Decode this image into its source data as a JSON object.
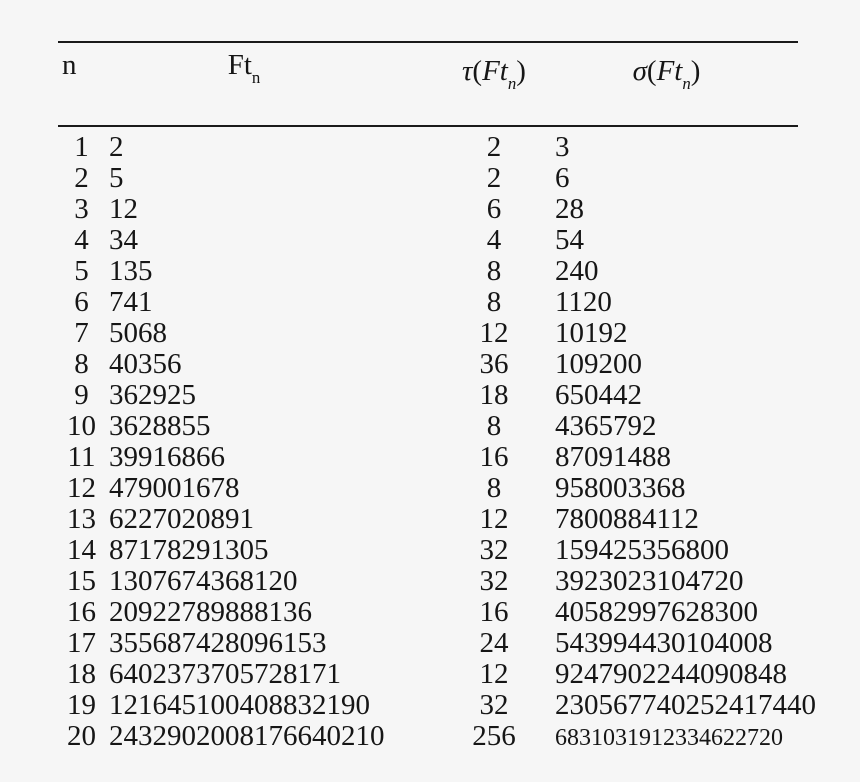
{
  "page": {
    "background_color": "#f6f6f6",
    "text_color": "#161616",
    "rule_color": "#1a1a1a"
  },
  "table": {
    "headers": {
      "n": "n",
      "ft": {
        "main": "Ft",
        "sub": "n"
      },
      "tau": {
        "func": "τ",
        "open": "(",
        "arg": "Ft",
        "sub": "n",
        "close": ")"
      },
      "sigma": {
        "func": "σ",
        "open": "(",
        "arg": "Ft",
        "sub": "n",
        "close": ")"
      }
    },
    "rows": [
      {
        "n": "1",
        "ft": "2",
        "tau": "2",
        "sigma": "3"
      },
      {
        "n": "2",
        "ft": "5",
        "tau": "2",
        "sigma": "6"
      },
      {
        "n": "3",
        "ft": "12",
        "tau": "6",
        "sigma": "28"
      },
      {
        "n": "4",
        "ft": "34",
        "tau": "4",
        "sigma": "54"
      },
      {
        "n": "5",
        "ft": "135",
        "tau": "8",
        "sigma": "240"
      },
      {
        "n": "6",
        "ft": "741",
        "tau": "8",
        "sigma": "1120"
      },
      {
        "n": "7",
        "ft": "5068",
        "tau": "12",
        "sigma": "10192"
      },
      {
        "n": "8",
        "ft": "40356",
        "tau": "36",
        "sigma": "109200"
      },
      {
        "n": "9",
        "ft": "362925",
        "tau": "18",
        "sigma": "650442"
      },
      {
        "n": "10",
        "ft": "3628855",
        "tau": "8",
        "sigma": "4365792"
      },
      {
        "n": "11",
        "ft": "39916866",
        "tau": "16",
        "sigma": "87091488"
      },
      {
        "n": "12",
        "ft": "479001678",
        "tau": "8",
        "sigma": "958003368"
      },
      {
        "n": "13",
        "ft": "6227020891",
        "tau": "12",
        "sigma": "7800884112"
      },
      {
        "n": "14",
        "ft": "87178291305",
        "tau": "32",
        "sigma": "159425356800"
      },
      {
        "n": "15",
        "ft": "1307674368120",
        "tau": "32",
        "sigma": "3923023104720"
      },
      {
        "n": "16",
        "ft": "20922789888136",
        "tau": "16",
        "sigma": "40582997628300"
      },
      {
        "n": "17",
        "ft": "355687428096153",
        "tau": "24",
        "sigma": "543994430104008"
      },
      {
        "n": "18",
        "ft": "6402373705728171",
        "tau": "12",
        "sigma": "9247902244090848"
      },
      {
        "n": "19",
        "ft": "121645100408832190",
        "tau": "32",
        "sigma": "230567740252417440"
      },
      {
        "n": "20",
        "ft": "2432902008176640210",
        "tau": "256",
        "sigma": "6831031912334622720"
      }
    ]
  }
}
